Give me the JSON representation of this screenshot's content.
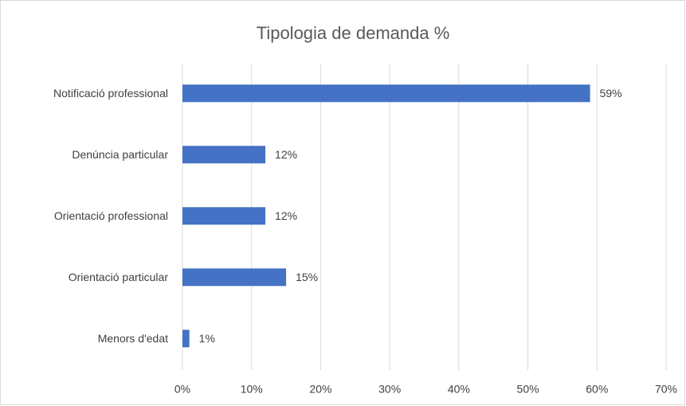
{
  "chart_data": {
    "type": "bar",
    "title": "Tipologia de demanda %",
    "categories": [
      "Notificació professional",
      "Denúncia particular",
      "Orientació professional",
      "Orientació particular",
      "Menors d'edat"
    ],
    "values": [
      59,
      12,
      12,
      15,
      1
    ],
    "value_labels": [
      "59%",
      "12%",
      "12%",
      "15%",
      "1%"
    ],
    "color": "#4472c4",
    "xlim": [
      0,
      70
    ],
    "xticks": [
      {
        "value": 0,
        "label": "0%"
      },
      {
        "value": 10,
        "label": "10%"
      },
      {
        "value": 20,
        "label": "20%"
      },
      {
        "value": 30,
        "label": "30%"
      },
      {
        "value": 40,
        "label": "40%"
      },
      {
        "value": 50,
        "label": "50%"
      },
      {
        "value": 60,
        "label": "60%"
      },
      {
        "value": 70,
        "label": "70%"
      }
    ],
    "grid": true
  }
}
